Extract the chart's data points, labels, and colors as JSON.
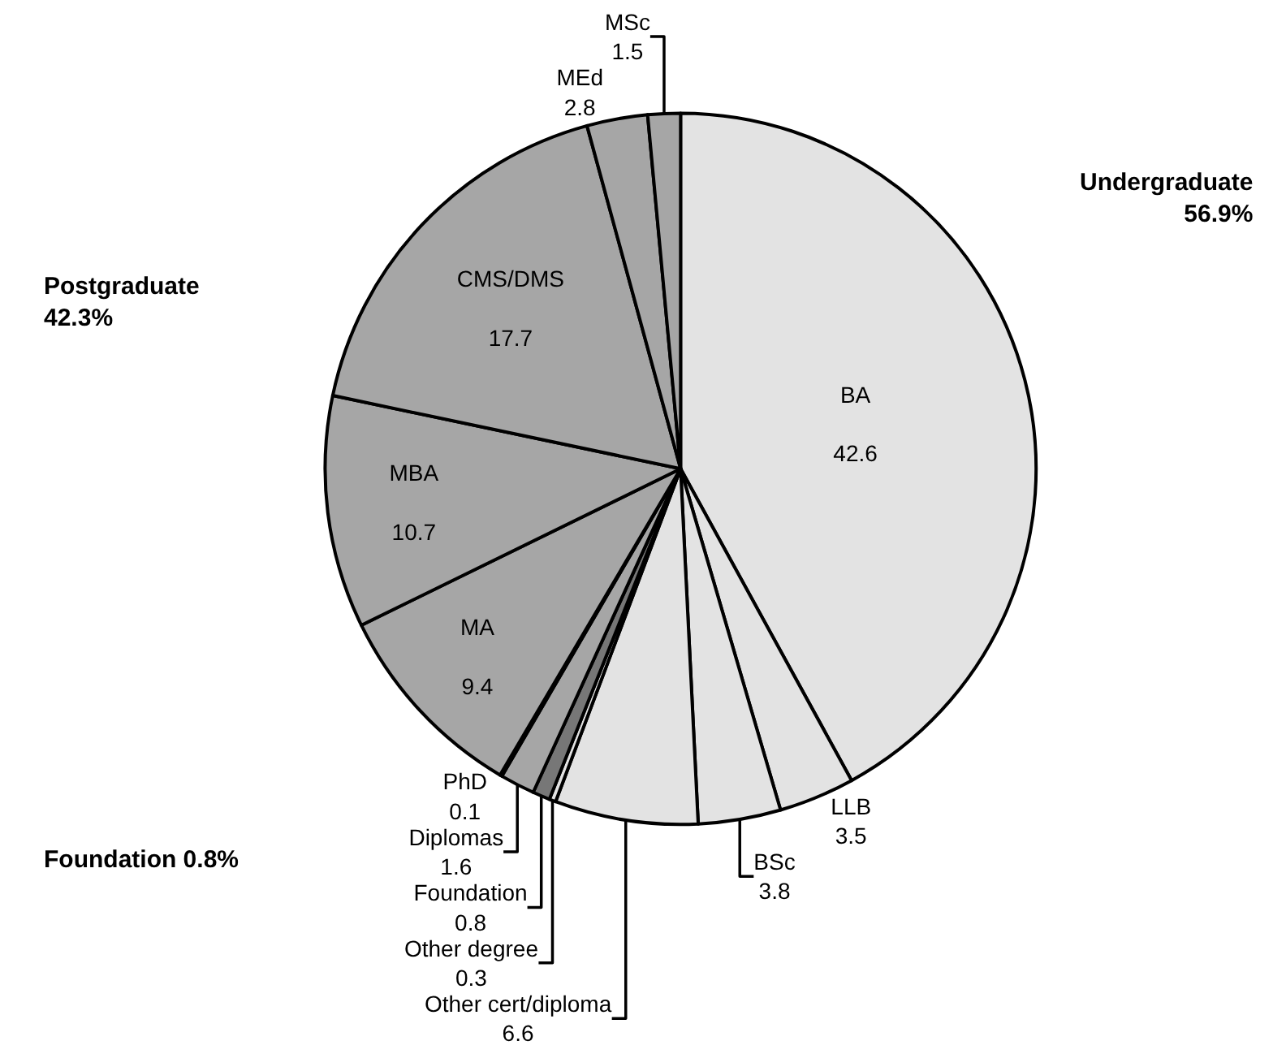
{
  "chart_data": {
    "type": "pie",
    "categories": [
      "BA",
      "LLB",
      "BSc",
      "Other cert/diploma",
      "Other degree",
      "Foundation",
      "Diplomas",
      "PhD",
      "MA",
      "MBA",
      "CMS/DMS",
      "MEd",
      "MSc"
    ],
    "values": [
      42.6,
      3.5,
      3.8,
      6.6,
      0.3,
      0.8,
      1.6,
      0.1,
      9.4,
      10.7,
      17.7,
      2.8,
      1.5
    ],
    "colors": [
      "#e3e3e3",
      "#e3e3e3",
      "#e3e3e3",
      "#e3e3e3",
      "#e3e3e3",
      "#777777",
      "#a6a6a6",
      "#a6a6a6",
      "#a6a6a6",
      "#a6a6a6",
      "#a6a6a6",
      "#a6a6a6",
      "#a6a6a6"
    ],
    "data_labels": true,
    "annotations": [
      "Undergraduate\n56.9%",
      "Postgraduate\n42.3%",
      "Foundation 0.8%"
    ]
  }
}
